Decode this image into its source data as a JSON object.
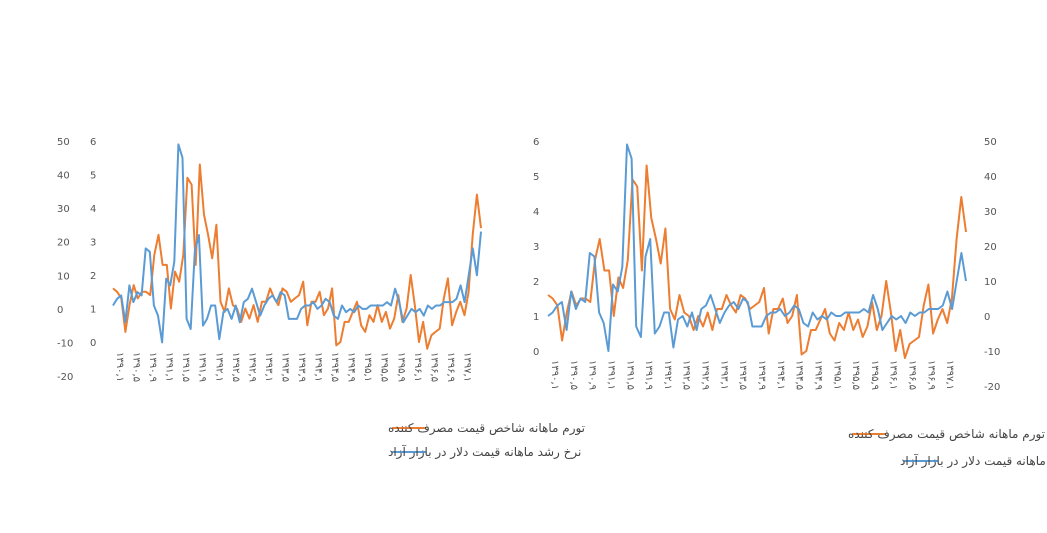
{
  "chart_data": [
    {
      "type": "line",
      "position": "left",
      "y_left": {
        "ticks": [
          "6",
          "5",
          "4",
          "3",
          "2",
          "1",
          "0"
        ],
        "range": [
          0,
          6
        ]
      },
      "y_right": {
        "ticks": [
          "50",
          "40",
          "30",
          "20",
          "10",
          "0",
          "-10",
          "-20"
        ],
        "range": [
          -20,
          50
        ]
      },
      "x_labels": [
        "۱۳۹۰,۱",
        "۱۳۹۰,۵",
        "۱۳۹۰,۹",
        "۱۳۹۱,۱",
        "۱۳۹۱,۵",
        "۱۳۹۱,۹",
        "۱۳۹۲,۱",
        "۱۳۹۲,۵",
        "۱۳۹۲,۹",
        "۱۳۹۳,۱",
        "۱۳۹۳,۵",
        "۱۳۹۳,۹",
        "۱۳۹۴,۱",
        "۱۳۹۴,۵",
        "۱۳۹۴,۹",
        "۱۳۹۵,۱",
        "۱۳۹۵,۵",
        "۱۳۹۵,۹",
        "۱۳۹۶,۱",
        "۱۳۹۶,۵",
        "۱۳۹۶,۹",
        "۱۳۹۷,۱"
      ],
      "series": [
        {
          "name": "تورم ماهانه شاخص قیمت مصرف کننده",
          "color": "#ED7D31",
          "axis": "left",
          "values": [
            1.6,
            1.5,
            1.3,
            0.3,
            1.1,
            1.7,
            1.3,
            1.5,
            1.5,
            1.4,
            2.6,
            3.2,
            2.3,
            2.3,
            1.0,
            2.1,
            1.8,
            2.6,
            4.9,
            4.7,
            2.3,
            5.3,
            3.8,
            3.2,
            2.5,
            3.5,
            1.2,
            0.9,
            1.6,
            1.1,
            1.0,
            0.6,
            1.0,
            0.7,
            1.1,
            0.6,
            1.2,
            1.2,
            1.6,
            1.3,
            1.1,
            1.6,
            1.5,
            1.2,
            1.3,
            1.4,
            1.8,
            0.5,
            1.2,
            1.2,
            1.5,
            0.8,
            1.0,
            1.6,
            -0.1,
            0.0,
            0.6,
            0.6,
            0.9,
            1.2,
            0.5,
            0.3,
            0.8,
            0.6,
            1.1,
            0.6,
            0.9,
            0.4,
            0.7,
            1.4,
            0.6,
            1.0,
            2.0,
            1.1,
            0.0,
            0.6,
            -0.2,
            0.2,
            0.3,
            0.4,
            1.3,
            1.9,
            0.5,
            0.9,
            1.2,
            0.8,
            1.5,
            3.2,
            4.4,
            3.4
          ]
        },
        {
          "name": "نرخ رشد ماهانه قیمت دلار در بازار آزاد",
          "color": "#5B9BD5",
          "axis": "right",
          "values": [
            1,
            3,
            4,
            -4,
            7,
            2,
            5,
            4,
            18,
            17,
            1,
            -2,
            -10,
            9,
            7,
            14,
            49,
            45,
            -3,
            -6,
            17,
            22,
            -5,
            -3,
            1,
            1,
            -9,
            -1,
            0,
            -3,
            1,
            -4,
            2,
            3,
            6,
            2,
            -2,
            1,
            3,
            4,
            2,
            5,
            4,
            -3,
            -3,
            -3,
            0,
            1,
            1,
            2,
            0,
            1,
            3,
            2,
            -2,
            -3,
            1,
            -1,
            0,
            -1,
            1,
            0,
            0,
            1,
            1,
            1,
            1,
            2,
            1,
            6,
            2,
            -4,
            -2,
            0,
            -1,
            0,
            -2,
            1,
            0,
            1,
            1,
            2,
            2,
            2,
            3,
            7,
            2,
            10,
            18,
            10,
            23
          ]
        }
      ],
      "legend": [
        "تورم ماهانه شاخص قیمت مصرف کننده",
        "نرخ رشد ماهانه قیمت دلار در بازار آزاد"
      ]
    },
    {
      "type": "line",
      "position": "right",
      "y_left": {
        "ticks": [
          "6",
          "5",
          "4",
          "3",
          "2",
          "1",
          "0"
        ],
        "range": [
          0,
          6
        ]
      },
      "y_right": {
        "ticks": [
          "50",
          "40",
          "30",
          "20",
          "10",
          "0",
          "-10",
          "-20"
        ],
        "range": [
          -20,
          50
        ]
      },
      "x_labels": [
        "۱۳۹۰,۱",
        "۱۳۹۰,۵",
        "۱۳۹۰,۹",
        "۱۳۹۱,۱",
        "۱۳۹۱,۵",
        "۱۳۹۱,۹",
        "۱۳۹۲,۱",
        "۱۳۹۲,۵",
        "۱۳۹۲,۹",
        "۱۳۹۳,۱",
        "۱۳۹۳,۵",
        "۱۳۹۳,۹",
        "۱۳۹۴,۱",
        "۱۳۹۴,۵",
        "۱۳۹۴,۹",
        "۱۳۹۵,۱",
        "۱۳۹۵,۵",
        "۱۳۹۵,۹",
        "۱۳۹۶,۱",
        "۱۳۹۶,۵",
        "۱۳۹۶,۹",
        "۱۳۹۷,۱"
      ],
      "series": [
        {
          "name": "تورم ماهانه شاخص قیمت مصرف کننده",
          "color": "#ED7D31",
          "axis": "left",
          "values": [
            1.6,
            1.5,
            1.3,
            0.3,
            1.1,
            1.7,
            1.3,
            1.5,
            1.5,
            1.4,
            2.6,
            3.2,
            2.3,
            2.3,
            1.0,
            2.1,
            1.8,
            2.6,
            4.9,
            4.7,
            2.3,
            5.3,
            3.8,
            3.2,
            2.5,
            3.5,
            1.2,
            0.9,
            1.6,
            1.1,
            1.0,
            0.6,
            1.0,
            0.7,
            1.1,
            0.6,
            1.2,
            1.2,
            1.6,
            1.3,
            1.1,
            1.6,
            1.5,
            1.2,
            1.3,
            1.4,
            1.8,
            0.5,
            1.2,
            1.2,
            1.5,
            0.8,
            1.0,
            1.6,
            -0.1,
            0.0,
            0.6,
            0.6,
            0.9,
            1.2,
            0.5,
            0.3,
            0.8,
            0.6,
            1.1,
            0.6,
            0.9,
            0.4,
            0.7,
            1.4,
            0.6,
            1.0,
            2.0,
            1.1,
            0.0,
            0.6,
            -0.2,
            0.2,
            0.3,
            0.4,
            1.3,
            1.9,
            0.5,
            0.9,
            1.2,
            0.8,
            1.5,
            3.2,
            4.4,
            3.4
          ]
        },
        {
          "name": "وقفه اول نرخ رشد ماهانه قیمت دلار در بازار آزاد",
          "color": "#5B9BD5",
          "axis": "right",
          "values": [
            0,
            1,
            3,
            4,
            -4,
            7,
            2,
            5,
            4,
            18,
            17,
            1,
            -2,
            -10,
            9,
            7,
            14,
            49,
            45,
            -3,
            -6,
            17,
            22,
            -5,
            -3,
            1,
            1,
            -9,
            -1,
            0,
            -3,
            1,
            -4,
            2,
            3,
            6,
            2,
            -2,
            1,
            3,
            4,
            2,
            5,
            4,
            -3,
            -3,
            -3,
            0,
            1,
            1,
            2,
            0,
            1,
            3,
            2,
            -2,
            -3,
            1,
            -1,
            0,
            -1,
            1,
            0,
            0,
            1,
            1,
            1,
            1,
            2,
            1,
            6,
            2,
            -4,
            -2,
            0,
            -1,
            0,
            -2,
            1,
            0,
            1,
            1,
            2,
            2,
            2,
            3,
            7,
            2,
            10,
            18,
            10
          ]
        }
      ],
      "legend": [
        "تورم ماهانه شاخص قیمت مصرف کننده",
        "وقفه اول نرخ رشد ماهانه قیمت دلار در بازار آزاد"
      ]
    }
  ]
}
